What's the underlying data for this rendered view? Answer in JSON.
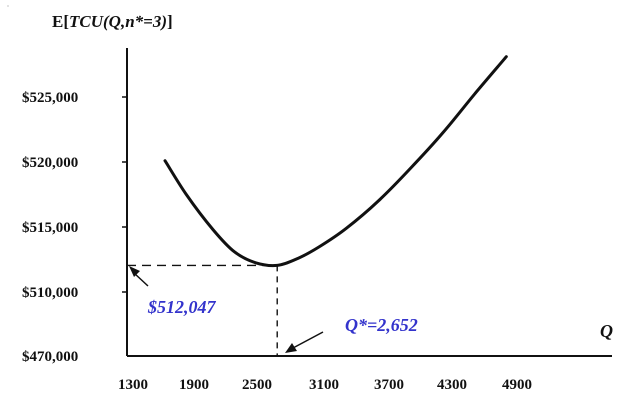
{
  "chart_data": {
    "type": "line",
    "ylabel": {
      "prefix": "E[",
      "italic": "TCU(Q,n*=3)",
      "suffix": "]"
    },
    "xlabel": "Q",
    "x_ticks": [
      "1300",
      "1900",
      "2500",
      "3100",
      "3700",
      "4300",
      "4900"
    ],
    "y_ticks": [
      "$470,000",
      "$510,000",
      "$515,000",
      "$520,000",
      "$525,000"
    ],
    "xlim": [
      1300,
      5800
    ],
    "y_axis_note": "broken axis between $470,000 and $510,000",
    "series": [
      {
        "points": [
          {
            "x": 1600,
            "y": 520100
          },
          {
            "x": 1800,
            "y": 517500
          },
          {
            "x": 2050,
            "y": 514800
          },
          {
            "x": 2250,
            "y": 513100
          },
          {
            "x": 2450,
            "y": 512250
          },
          {
            "x": 2652,
            "y": 512047
          },
          {
            "x": 2850,
            "y": 512600
          },
          {
            "x": 3050,
            "y": 513500
          },
          {
            "x": 3300,
            "y": 514900
          },
          {
            "x": 3600,
            "y": 517000
          },
          {
            "x": 3900,
            "y": 519500
          },
          {
            "x": 4200,
            "y": 522200
          },
          {
            "x": 4500,
            "y": 525200
          },
          {
            "x": 4800,
            "y": 528100
          }
        ]
      }
    ],
    "annotations": {
      "min_cost": "$512,047",
      "q_star": "Q*=2,652"
    },
    "colors": {
      "line": "#111111",
      "annotation": "#3333cc"
    }
  }
}
